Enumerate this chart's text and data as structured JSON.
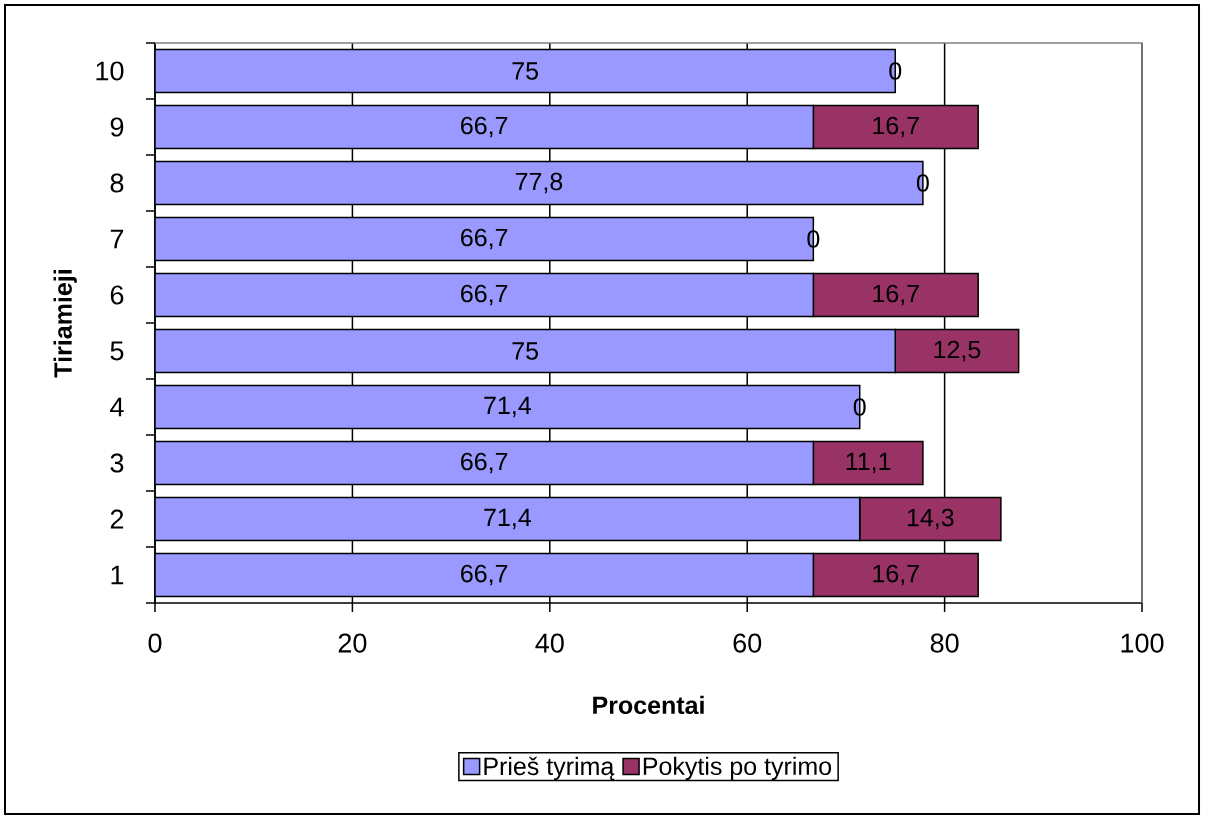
{
  "chart_data": {
    "type": "bar",
    "orientation": "horizontal",
    "stacked": true,
    "xlabel": "Procentai",
    "ylabel": "Tiriamieji",
    "categories": [
      "10",
      "9",
      "8",
      "7",
      "6",
      "5",
      "4",
      "3",
      "2",
      "1"
    ],
    "series": [
      {
        "name": "Prieš tyrimą",
        "color": "#9999ff",
        "values": [
          75,
          66.7,
          77.8,
          66.7,
          66.7,
          75,
          71.4,
          66.7,
          71.4,
          66.7
        ],
        "value_labels": [
          "75",
          "66,7",
          "77,8",
          "66,7",
          "66,7",
          "75",
          "71,4",
          "66,7",
          "71,4",
          "66,7"
        ]
      },
      {
        "name": "Pokytis po tyrimo",
        "color": "#993366",
        "values": [
          0,
          16.7,
          0,
          0,
          16.7,
          12.5,
          0,
          11.1,
          14.3,
          16.7
        ],
        "value_labels": [
          "0",
          "16,7",
          "0",
          "0",
          "16,7",
          "12,5",
          "0",
          "11,1",
          "14,3",
          "16,7"
        ]
      }
    ],
    "xlim": [
      0,
      100
    ],
    "xticks": [
      0,
      20,
      40,
      60,
      80,
      100
    ],
    "grid": "x",
    "legend": "bottom"
  }
}
